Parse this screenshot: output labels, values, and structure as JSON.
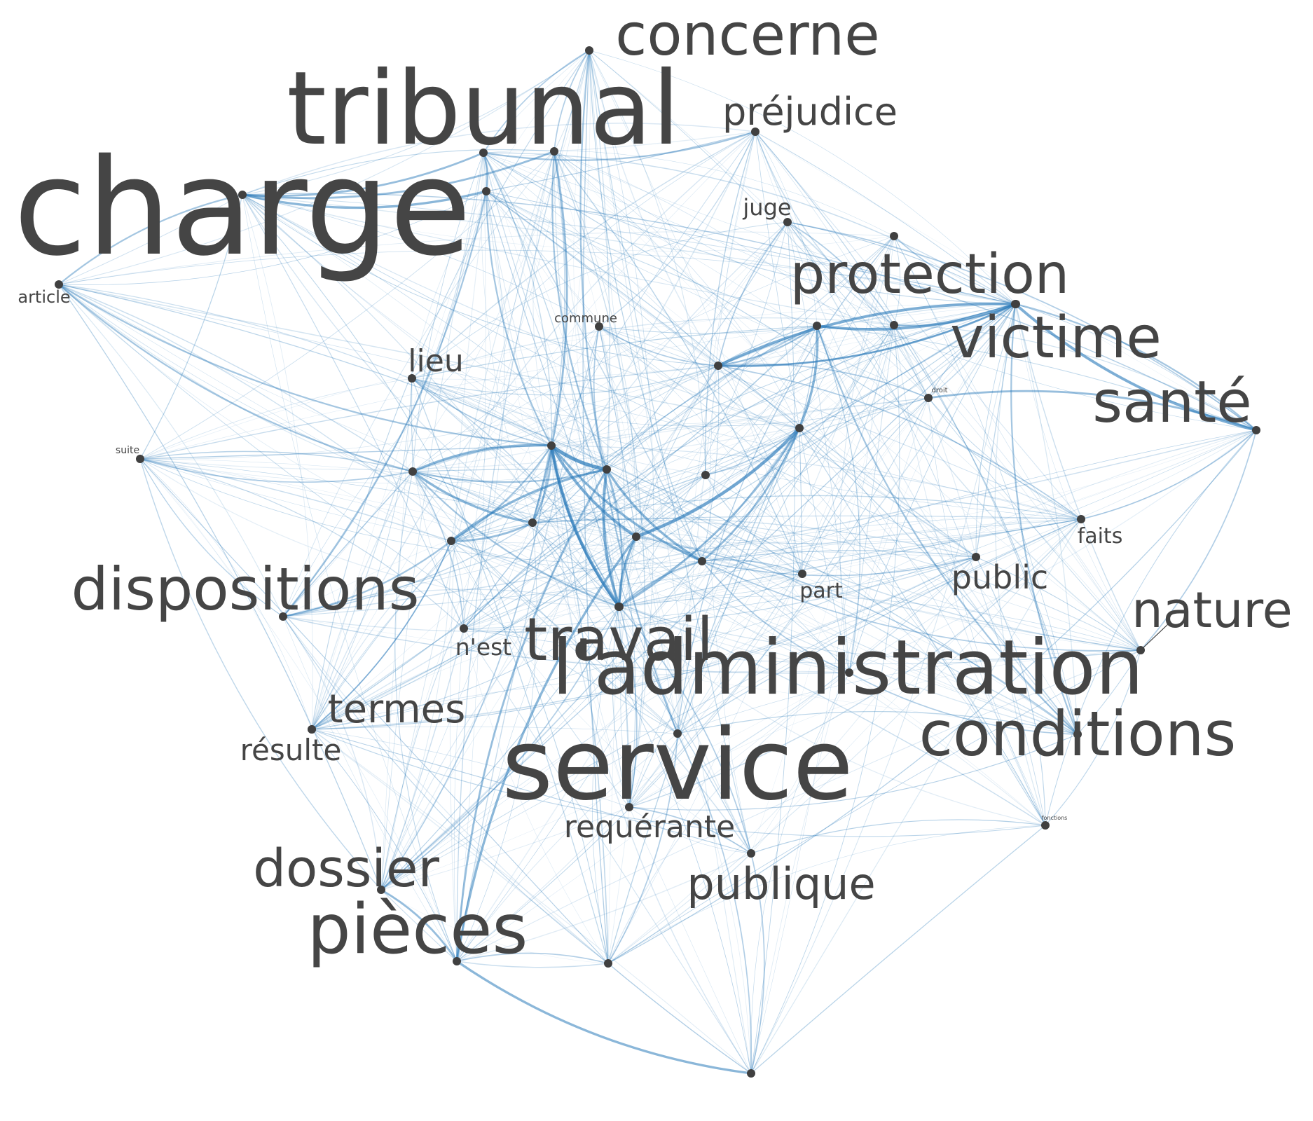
{
  "colors": {
    "edge": "#2b7bba",
    "node": "#404040",
    "label": "#454545",
    "background": "#ffffff"
  },
  "nodes": [
    {
      "id": "charge",
      "label": "charge",
      "weight": 100
    },
    {
      "id": "tribunal",
      "label": "tribunal",
      "weight": 78
    },
    {
      "id": "service",
      "label": "service",
      "weight": 74
    },
    {
      "id": "ladministration",
      "label": "l'administration",
      "weight": 62
    },
    {
      "id": "concerne",
      "label": "concerne",
      "weight": 52
    },
    {
      "id": "conditions",
      "label": "conditions",
      "weight": 58
    },
    {
      "id": "travail",
      "label": "travail",
      "weight": 58
    },
    {
      "id": "pieces",
      "label": "pièces",
      "weight": 62
    },
    {
      "id": "dispositions",
      "label": "dispositions",
      "weight": 56
    },
    {
      "id": "sante",
      "label": "santé",
      "weight": 56
    },
    {
      "id": "victime",
      "label": "victime",
      "weight": 56
    },
    {
      "id": "protection",
      "label": "protection",
      "weight": 54
    },
    {
      "id": "nature",
      "label": "nature",
      "weight": 46
    },
    {
      "id": "dossier",
      "label": "dossier",
      "weight": 50
    },
    {
      "id": "publique",
      "label": "publique",
      "weight": 44
    },
    {
      "id": "prejudice",
      "label": "préjudice",
      "weight": 38
    },
    {
      "id": "termes",
      "label": "termes",
      "weight": 38
    },
    {
      "id": "requerante",
      "label": "requérante",
      "weight": 32
    },
    {
      "id": "public",
      "label": "public",
      "weight": 30
    },
    {
      "id": "lieu",
      "label": "lieu",
      "weight": 30
    },
    {
      "id": "resulte",
      "label": "résulte",
      "weight": 28
    },
    {
      "id": "nest",
      "label": "n'est",
      "weight": 22
    },
    {
      "id": "juge",
      "label": "juge",
      "weight": 22
    },
    {
      "id": "article",
      "label": "article",
      "weight": 18
    },
    {
      "id": "faits",
      "label": "faits",
      "weight": 20
    },
    {
      "id": "part",
      "label": "part",
      "weight": 20
    },
    {
      "id": "commune",
      "label": "commune",
      "weight": 14
    },
    {
      "id": "suite",
      "label": "suite",
      "weight": 10
    },
    {
      "id": "droit",
      "label": "droit",
      "weight": 6
    },
    {
      "id": "fonctions",
      "label": "fonctions",
      "weight": 5
    },
    {
      "id": "c1",
      "label": "",
      "weight": 4
    },
    {
      "id": "c2",
      "label": "",
      "weight": 4
    },
    {
      "id": "c3",
      "label": "",
      "weight": 4
    },
    {
      "id": "c4",
      "label": "",
      "weight": 4
    },
    {
      "id": "c5",
      "label": "",
      "weight": 4
    },
    {
      "id": "c6",
      "label": "",
      "weight": 4
    },
    {
      "id": "c7",
      "label": "",
      "weight": 4
    },
    {
      "id": "c8",
      "label": "",
      "weight": 4
    },
    {
      "id": "c9",
      "label": "",
      "weight": 4
    },
    {
      "id": "c10",
      "label": "",
      "weight": 4
    },
    {
      "id": "c11",
      "label": "",
      "weight": 4
    },
    {
      "id": "c12",
      "label": "",
      "weight": 4
    },
    {
      "id": "c13",
      "label": "",
      "weight": 4
    },
    {
      "id": "c14",
      "label": "",
      "weight": 4
    },
    {
      "id": "m1",
      "label": "",
      "weight": 3
    },
    {
      "id": "m2",
      "label": "",
      "weight": 3
    },
    {
      "id": "m3",
      "label": "",
      "weight": 3
    },
    {
      "id": "m4",
      "label": "",
      "weight": 3
    }
  ],
  "edges": [
    {
      "source": "c1",
      "target": "c2",
      "weight": 8
    },
    {
      "source": "c1",
      "target": "c3",
      "weight": 6
    },
    {
      "source": "c1",
      "target": "c4",
      "weight": 7
    },
    {
      "source": "c2",
      "target": "c4",
      "weight": 6
    },
    {
      "source": "c3",
      "target": "c4",
      "weight": 5
    },
    {
      "source": "c1",
      "target": "c5",
      "weight": 5
    },
    {
      "source": "c2",
      "target": "c5",
      "weight": 5
    },
    {
      "source": "c3",
      "target": "c6",
      "weight": 7
    },
    {
      "source": "c4",
      "target": "c6",
      "weight": 4
    },
    {
      "source": "c6",
      "target": "c7",
      "weight": 5
    },
    {
      "source": "c7",
      "target": "c8",
      "weight": 6
    },
    {
      "source": "c8",
      "target": "victime",
      "weight": 5
    },
    {
      "source": "c8",
      "target": "sante",
      "weight": 6
    },
    {
      "source": "c9",
      "target": "victime",
      "weight": 4
    },
    {
      "source": "c8",
      "target": "c9",
      "weight": 6
    },
    {
      "source": "sante",
      "target": "droit",
      "weight": 4
    },
    {
      "source": "c5",
      "target": "c6",
      "weight": 4
    },
    {
      "source": "c1",
      "target": "c10",
      "weight": 5
    },
    {
      "source": "c2",
      "target": "c11",
      "weight": 5
    },
    {
      "source": "c10",
      "target": "c12",
      "weight": 5
    },
    {
      "source": "c11",
      "target": "c12",
      "weight": 4
    },
    {
      "source": "c12",
      "target": "c13",
      "weight": 4
    },
    {
      "source": "charge",
      "target": "c14",
      "weight": 5
    },
    {
      "source": "charge",
      "target": "c13",
      "weight": 4
    },
    {
      "source": "c14",
      "target": "tribunal",
      "weight": 4
    },
    {
      "source": "charge",
      "target": "tribunal",
      "weight": 4
    },
    {
      "source": "charge",
      "target": "article",
      "weight": 3
    },
    {
      "source": "tribunal",
      "target": "prejudice",
      "weight": 3
    },
    {
      "source": "c3",
      "target": "pieces",
      "weight": 5
    },
    {
      "source": "pieces",
      "target": "dossier",
      "weight": 4
    },
    {
      "source": "pieces",
      "target": "m4",
      "weight": 5
    },
    {
      "source": "c2",
      "target": "pieces",
      "weight": 4
    },
    {
      "source": "c1",
      "target": "travail",
      "weight": 4
    },
    {
      "source": "c4",
      "target": "travail",
      "weight": 4
    },
    {
      "source": "c7",
      "target": "conditions",
      "weight": 3
    },
    {
      "source": "c8",
      "target": "conditions",
      "weight": 3
    },
    {
      "source": "c9",
      "target": "c8",
      "weight": 3
    },
    {
      "source": "protection",
      "target": "c8",
      "weight": 3
    },
    {
      "source": "c9",
      "target": "c7",
      "weight": 3
    },
    {
      "source": "dispositions",
      "target": "c14",
      "weight": 3
    },
    {
      "source": "dispositions",
      "target": "c11",
      "weight": 3
    },
    {
      "source": "concerne",
      "target": "service",
      "weight": 3
    },
    {
      "source": "concerne",
      "target": "tribunal",
      "weight": 2
    },
    {
      "source": "concerne",
      "target": "c13",
      "weight": 2
    },
    {
      "source": "sante",
      "target": "victime",
      "weight": 3
    },
    {
      "source": "sante",
      "target": "juge",
      "weight": 2
    },
    {
      "source": "protection",
      "target": "juge",
      "weight": 2
    },
    {
      "source": "c10",
      "target": "c4",
      "weight": 3
    },
    {
      "source": "c5",
      "target": "c4",
      "weight": 3
    },
    {
      "source": "c10",
      "target": "c2",
      "weight": 3
    },
    {
      "source": "lieu",
      "target": "c1",
      "weight": 2
    },
    {
      "source": "commune",
      "target": "c2",
      "weight": 2
    },
    {
      "source": "commune",
      "target": "c9",
      "weight": 2
    },
    {
      "source": "c5",
      "target": "public",
      "weight": 2
    },
    {
      "source": "c5",
      "target": "nature",
      "weight": 2
    },
    {
      "source": "c5",
      "target": "ladministration",
      "weight": 2
    },
    {
      "source": "ladministration",
      "target": "conditions",
      "weight": 2
    },
    {
      "source": "publique",
      "target": "requerante",
      "weight": 2
    },
    {
      "source": "publique",
      "target": "c4",
      "weight": 2
    },
    {
      "source": "requerante",
      "target": "c4",
      "weight": 2
    },
    {
      "source": "termes",
      "target": "c11",
      "weight": 2
    },
    {
      "source": "resulte",
      "target": "c11",
      "weight": 2
    },
    {
      "source": "nest",
      "target": "c10",
      "weight": 2
    },
    {
      "source": "suite",
      "target": "c10",
      "weight": 2
    },
    {
      "source": "faits",
      "target": "c9",
      "weight": 2
    },
    {
      "source": "part",
      "target": "c5",
      "weight": 2
    },
    {
      "source": "m1",
      "target": "c6",
      "weight": 2
    },
    {
      "source": "m2",
      "target": "c8",
      "weight": 2
    },
    {
      "source": "m3",
      "target": "pieces",
      "weight": 2
    },
    {
      "source": "fonctions",
      "target": "public",
      "weight": 1
    },
    {
      "source": "fonctions",
      "target": "nature",
      "weight": 1
    },
    {
      "source": "m4",
      "target": "publique",
      "weight": 2
    },
    {
      "source": "m4",
      "target": "service",
      "weight": 2
    },
    {
      "source": "m3",
      "target": "service",
      "weight": 2
    },
    {
      "source": "article",
      "target": "c10",
      "weight": 3
    },
    {
      "source": "article",
      "target": "c1",
      "weight": 3
    },
    {
      "source": "suite",
      "target": "dispositions",
      "weight": 1
    },
    {
      "source": "juge",
      "target": "c9",
      "weight": 2
    },
    {
      "source": "droit",
      "target": "c9",
      "weight": 2
    },
    {
      "source": "faits",
      "target": "sante",
      "weight": 2
    },
    {
      "source": "nature",
      "target": "sante",
      "weight": 2
    },
    {
      "source": "conditions",
      "target": "c3",
      "weight": 2
    },
    {
      "source": "c11",
      "target": "c1",
      "weight": 3
    },
    {
      "source": "c12",
      "target": "c1",
      "weight": 3
    },
    {
      "source": "c13",
      "target": "c2",
      "weight": 3
    },
    {
      "source": "c14",
      "target": "c1",
      "weight": 3
    },
    {
      "source": "dossier",
      "target": "c1",
      "weight": 2
    },
    {
      "source": "dossier",
      "target": "c4",
      "weight": 2
    },
    {
      "source": "travail",
      "target": "c2",
      "weight": 3
    }
  ]
}
